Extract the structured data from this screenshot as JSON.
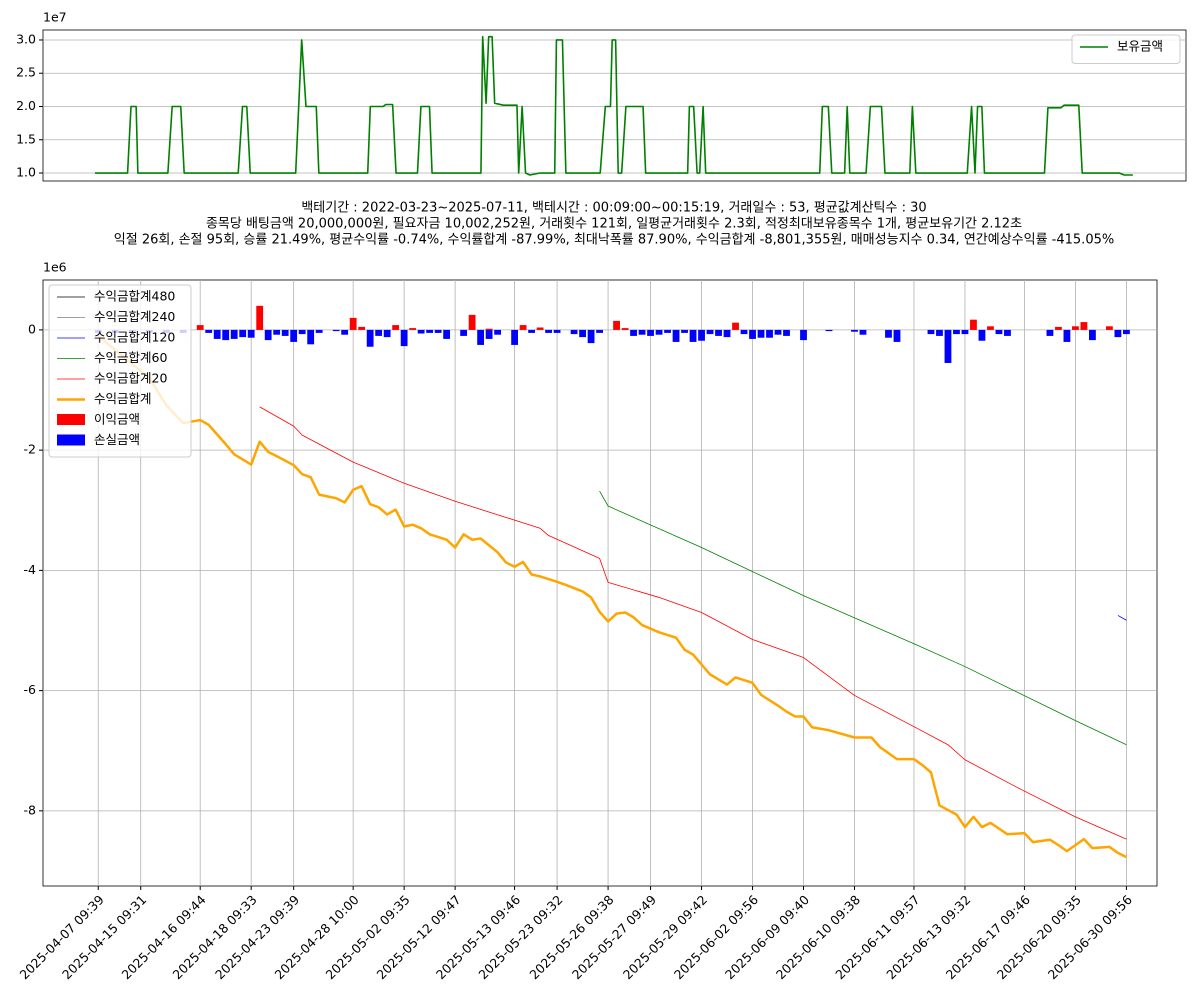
{
  "chart_data": [
    {
      "type": "line",
      "y_offset_label": "1e7",
      "grid": true,
      "legend": "upper right",
      "xlim": [
        -6.06,
        127.2
      ],
      "ylim": [
        0.88,
        3.15
      ],
      "yticks": [
        {
          "value": 1.0,
          "label": "1.0"
        },
        1.5,
        {
          "value": 2.0,
          "label": "2.0"
        },
        2.5,
        {
          "value": 3.0,
          "label": "3.0"
        }
      ],
      "series": [
        {
          "name": "보유금액",
          "color": "#008000",
          "type": "line",
          "x": [
            0,
            3.8,
            4.2,
            4.8,
            5.0,
            8.5,
            9.0,
            10,
            10.4,
            16.7,
            17.2,
            17.7,
            18.1,
            23.4,
            24.1,
            24.6,
            25.8,
            26.1,
            31.8,
            32.1,
            33.6,
            33.9,
            34.7,
            35.1,
            37.6,
            38.0,
            39.0,
            39.3,
            43.5,
            45.0,
            45.2,
            45.6,
            45.9,
            46.3,
            46.6,
            47.6,
            49.2,
            49.4,
            49.8,
            50.2,
            50.7,
            51.9,
            53.6,
            53.8,
            54.5,
            54.9,
            58.9,
            59.5,
            60.1,
            60.3,
            60.7,
            61.0,
            61.4,
            61.9,
            63.9,
            64.2,
            69.1,
            69.3,
            69.8,
            70.2,
            70.5,
            70.9,
            71.2,
            84.5,
            84.8,
            85.5,
            85.9,
            87.4,
            87.7,
            88.0,
            89.9,
            90.4,
            91.7,
            92.1,
            95.0,
            95.3,
            95.7,
            97.3,
            101.7,
            102.2,
            102.6,
            102.9,
            103.4,
            103.7,
            110.7,
            111.1,
            112.6,
            113.0,
            114.7,
            115.1,
            119.4,
            120.0,
            121
          ],
          "values": [
            1.0,
            1.0,
            2.0,
            2.0,
            1.0,
            1.0,
            2.0,
            2.0,
            1.0,
            1.0,
            2.0,
            2.0,
            1.0,
            1.0,
            3.0,
            2.0,
            2.0,
            1.0,
            1.0,
            2.0,
            2.0,
            2.03,
            2.03,
            1.0,
            1.0,
            2.0,
            2.0,
            1.0,
            1.0,
            1.0,
            3.05,
            2.05,
            3.05,
            3.05,
            2.05,
            2.02,
            2.02,
            1.0,
            2.0,
            1.0,
            0.97,
            1.0,
            1.0,
            3.0,
            3.0,
            1.0,
            1.0,
            2.0,
            2.0,
            3.0,
            3.0,
            1.0,
            1.0,
            2.0,
            2.0,
            1.0,
            1.0,
            2.0,
            2.0,
            1.0,
            1.0,
            2.0,
            1.0,
            1.0,
            2.0,
            2.0,
            1.0,
            1.0,
            2.0,
            1.0,
            1.0,
            2.0,
            2.0,
            1.0,
            1.0,
            2.0,
            1.0,
            1.0,
            1.0,
            2.0,
            1.0,
            2.0,
            2.0,
            1.0,
            1.0,
            1.98,
            1.98,
            2.02,
            2.02,
            1.0,
            1.0,
            0.97,
            0.97
          ]
        }
      ]
    },
    {
      "type": "combo",
      "title": [
        "백테기간 : 2022-03-23~2025-07-11, 백테시간 : 00:09:00~00:15:19, 거래일수 : 53, 평균값계산틱수 : 30",
        "종목당 배팅금액 20,000,000원, 필요자금 10,002,252원, 거래횟수 121회, 일평균거래횟수 2.3회, 적정최대보유종목수 1개, 평균보유기간 2.12초",
        "익절 26회, 손절 95회, 승률 21.49%, 평균수익률 -0.74%, 수익률합계 -87.99%, 최대낙폭률 87.90%, 수익금합계 -8,801,355원, 매매성능지수 0.34, 연간예상수익률 -415.05%"
      ],
      "y_offset_label": "1e6",
      "grid": true,
      "legend": "upper left",
      "xlim": [
        -6.5,
        124.6
      ],
      "ylim": [
        -9.25,
        0.83
      ],
      "yticks": [
        -8,
        -6,
        -4,
        -2,
        0
      ],
      "xticks": [
        {
          "value": 0,
          "label": "2025-04-07 09:39"
        },
        {
          "value": 5,
          "label": "2025-04-15 09:31"
        },
        {
          "value": 12,
          "label": "2025-04-16 09:44"
        },
        {
          "value": 18,
          "label": "2025-04-18 09:33"
        },
        {
          "value": 23,
          "label": "2025-04-23 09:39"
        },
        {
          "value": 30,
          "label": "2025-04-28 10:00"
        },
        {
          "value": 36,
          "label": "2025-05-02 09:35"
        },
        {
          "value": 42,
          "label": "2025-05-12 09:47"
        },
        {
          "value": 49,
          "label": "2025-05-13 09:46"
        },
        {
          "value": 54,
          "label": "2025-05-23 09:32"
        },
        {
          "value": 60,
          "label": "2025-05-26 09:38"
        },
        {
          "value": 65,
          "label": "2025-05-27 09:49"
        },
        {
          "value": 71,
          "label": "2025-05-29 09:42"
        },
        {
          "value": 77,
          "label": "2025-06-02 09:56"
        },
        {
          "value": 83,
          "label": "2025-06-09 09:40"
        },
        {
          "value": 89,
          "label": "2025-06-10 09:38"
        },
        {
          "value": 96,
          "label": "2025-06-11 09:57"
        },
        {
          "value": 102,
          "label": "2025-06-13 09:32"
        },
        {
          "value": 109,
          "label": "2025-06-17 09:46"
        },
        {
          "value": 115,
          "label": "2025-06-20 09:35"
        },
        {
          "value": 121,
          "label": "2025-06-30 09:56"
        }
      ],
      "series": [
        {
          "name": "수익금합계480",
          "color": "#000000",
          "type": "line",
          "width": 0.8,
          "x": [],
          "values": []
        },
        {
          "name": "수익금합계240",
          "color": "#808080",
          "type": "line",
          "width": 0.8,
          "x": [],
          "values": []
        },
        {
          "name": "수익금합계120",
          "color": "#0000ff",
          "type": "line",
          "width": 0.8,
          "x": [
            120,
            121
          ],
          "values": [
            -4.75,
            -4.83
          ]
        },
        {
          "name": "수익금합계60",
          "color": "#008000",
          "type": "line",
          "width": 0.8,
          "x": [
            59,
            60,
            71,
            83,
            96,
            102,
            115,
            121
          ],
          "values": [
            -2.68,
            -2.93,
            -3.62,
            -4.42,
            -5.22,
            -5.6,
            -6.5,
            -6.9
          ]
        },
        {
          "name": "수익금합계20",
          "color": "#ff0000",
          "type": "line",
          "width": 0.8,
          "x": [
            19,
            23,
            24,
            30,
            36,
            42,
            48,
            52,
            53,
            59,
            60,
            66,
            71,
            77,
            83,
            89,
            96,
            100,
            102,
            108,
            115,
            121
          ],
          "values": [
            -1.28,
            -1.6,
            -1.75,
            -2.2,
            -2.55,
            -2.85,
            -3.12,
            -3.3,
            -3.42,
            -3.8,
            -4.2,
            -4.45,
            -4.7,
            -5.15,
            -5.45,
            -6.08,
            -6.6,
            -6.9,
            -7.15,
            -7.6,
            -8.1,
            -8.47
          ]
        },
        {
          "name": "수익금합계",
          "color": "#ffa500",
          "type": "line",
          "width": 2.5,
          "x": [
            0,
            6,
            8,
            10,
            12,
            13,
            15,
            16,
            18,
            19,
            20,
            21,
            23,
            24,
            25,
            26,
            28,
            29,
            30,
            31,
            32,
            33,
            34,
            35,
            36,
            37,
            38,
            39,
            41,
            42,
            43,
            44,
            45,
            47,
            48,
            49,
            50,
            51,
            52,
            54,
            55,
            57,
            58,
            59,
            60,
            61,
            62,
            63,
            64,
            66,
            68,
            69,
            70,
            72,
            74,
            75,
            77,
            78,
            80,
            81,
            82,
            83,
            84,
            86,
            89,
            91,
            92,
            94,
            96,
            97,
            98,
            99,
            101,
            102,
            103,
            104,
            105,
            107,
            109,
            110,
            112,
            113,
            114,
            116,
            117,
            119,
            120,
            121
          ],
          "values": [
            -0.1,
            -0.8,
            -1.25,
            -1.55,
            -1.5,
            -1.58,
            -1.9,
            -2.07,
            -2.24,
            -1.86,
            -2.03,
            -2.1,
            -2.25,
            -2.4,
            -2.45,
            -2.74,
            -2.8,
            -2.87,
            -2.66,
            -2.6,
            -2.9,
            -2.95,
            -3.07,
            -2.99,
            -3.27,
            -3.24,
            -3.3,
            -3.4,
            -3.49,
            -3.62,
            -3.4,
            -3.49,
            -3.47,
            -3.7,
            -3.87,
            -3.94,
            -3.86,
            -4.07,
            -4.1,
            -4.19,
            -4.24,
            -4.35,
            -4.45,
            -4.69,
            -4.85,
            -4.72,
            -4.7,
            -4.78,
            -4.91,
            -5.03,
            -5.12,
            -5.32,
            -5.4,
            -5.73,
            -5.9,
            -5.78,
            -5.87,
            -6.07,
            -6.25,
            -6.35,
            -6.43,
            -6.43,
            -6.61,
            -6.66,
            -6.78,
            -6.78,
            -6.94,
            -7.14,
            -7.14,
            -7.24,
            -7.36,
            -7.91,
            -8.06,
            -8.27,
            -8.1,
            -8.27,
            -8.2,
            -8.39,
            -8.37,
            -8.52,
            -8.48,
            -8.57,
            -8.67,
            -8.47,
            -8.62,
            -8.6,
            -8.7,
            -8.77
          ]
        },
        {
          "name": "이익금액",
          "color": "#ff0000",
          "type": "bar",
          "x": [
            12,
            19,
            30,
            31,
            35,
            37,
            44,
            46,
            50,
            52,
            61,
            62,
            75,
            103,
            105,
            113,
            115,
            116,
            119
          ],
          "values": [
            0.08,
            0.4,
            0.2,
            0.05,
            0.08,
            0.03,
            0.25,
            0.02,
            0.08,
            0.04,
            0.15,
            0.03,
            0.12,
            0.17,
            0.06,
            0.05,
            0.06,
            0.13,
            0.06
          ]
        },
        {
          "name": "손실금액",
          "color": "#0000ff",
          "type": "bar",
          "x": [
            0,
            2,
            4,
            6,
            8,
            10,
            13,
            14,
            15,
            16,
            17,
            18,
            20,
            21,
            22,
            23,
            24,
            25,
            26,
            28,
            29,
            32,
            33,
            34,
            36,
            38,
            39,
            40,
            41,
            43,
            45,
            46,
            47,
            49,
            51,
            53,
            54,
            56,
            57,
            58,
            59,
            63,
            64,
            65,
            66,
            67,
            68,
            69,
            70,
            71,
            72,
            73,
            74,
            76,
            77,
            78,
            79,
            80,
            81,
            83,
            86,
            89,
            90,
            93,
            94,
            98,
            99,
            100,
            101,
            102,
            104,
            106,
            107,
            112,
            114,
            117,
            120,
            121
          ],
          "values": [
            -0.05,
            -0.05,
            -0.05,
            -0.05,
            -0.05,
            -0.05,
            -0.05,
            -0.15,
            -0.17,
            -0.15,
            -0.12,
            -0.13,
            -0.17,
            -0.08,
            -0.1,
            -0.2,
            -0.07,
            -0.24,
            -0.05,
            -0.02,
            -0.08,
            -0.28,
            -0.1,
            -0.12,
            -0.27,
            -0.06,
            -0.05,
            -0.05,
            -0.15,
            -0.1,
            -0.25,
            -0.15,
            -0.08,
            -0.25,
            -0.05,
            -0.05,
            -0.05,
            -0.07,
            -0.12,
            -0.22,
            -0.05,
            -0.1,
            -0.08,
            -0.1,
            -0.08,
            -0.05,
            -0.2,
            -0.05,
            -0.2,
            -0.18,
            -0.07,
            -0.1,
            -0.12,
            -0.07,
            -0.15,
            -0.13,
            -0.13,
            -0.08,
            -0.1,
            -0.17,
            -0.02,
            -0.03,
            -0.08,
            -0.13,
            -0.2,
            -0.07,
            -0.1,
            -0.55,
            -0.07,
            -0.07,
            -0.18,
            -0.07,
            -0.1,
            -0.1,
            -0.2,
            -0.17,
            -0.12,
            -0.07
          ]
        }
      ]
    }
  ]
}
